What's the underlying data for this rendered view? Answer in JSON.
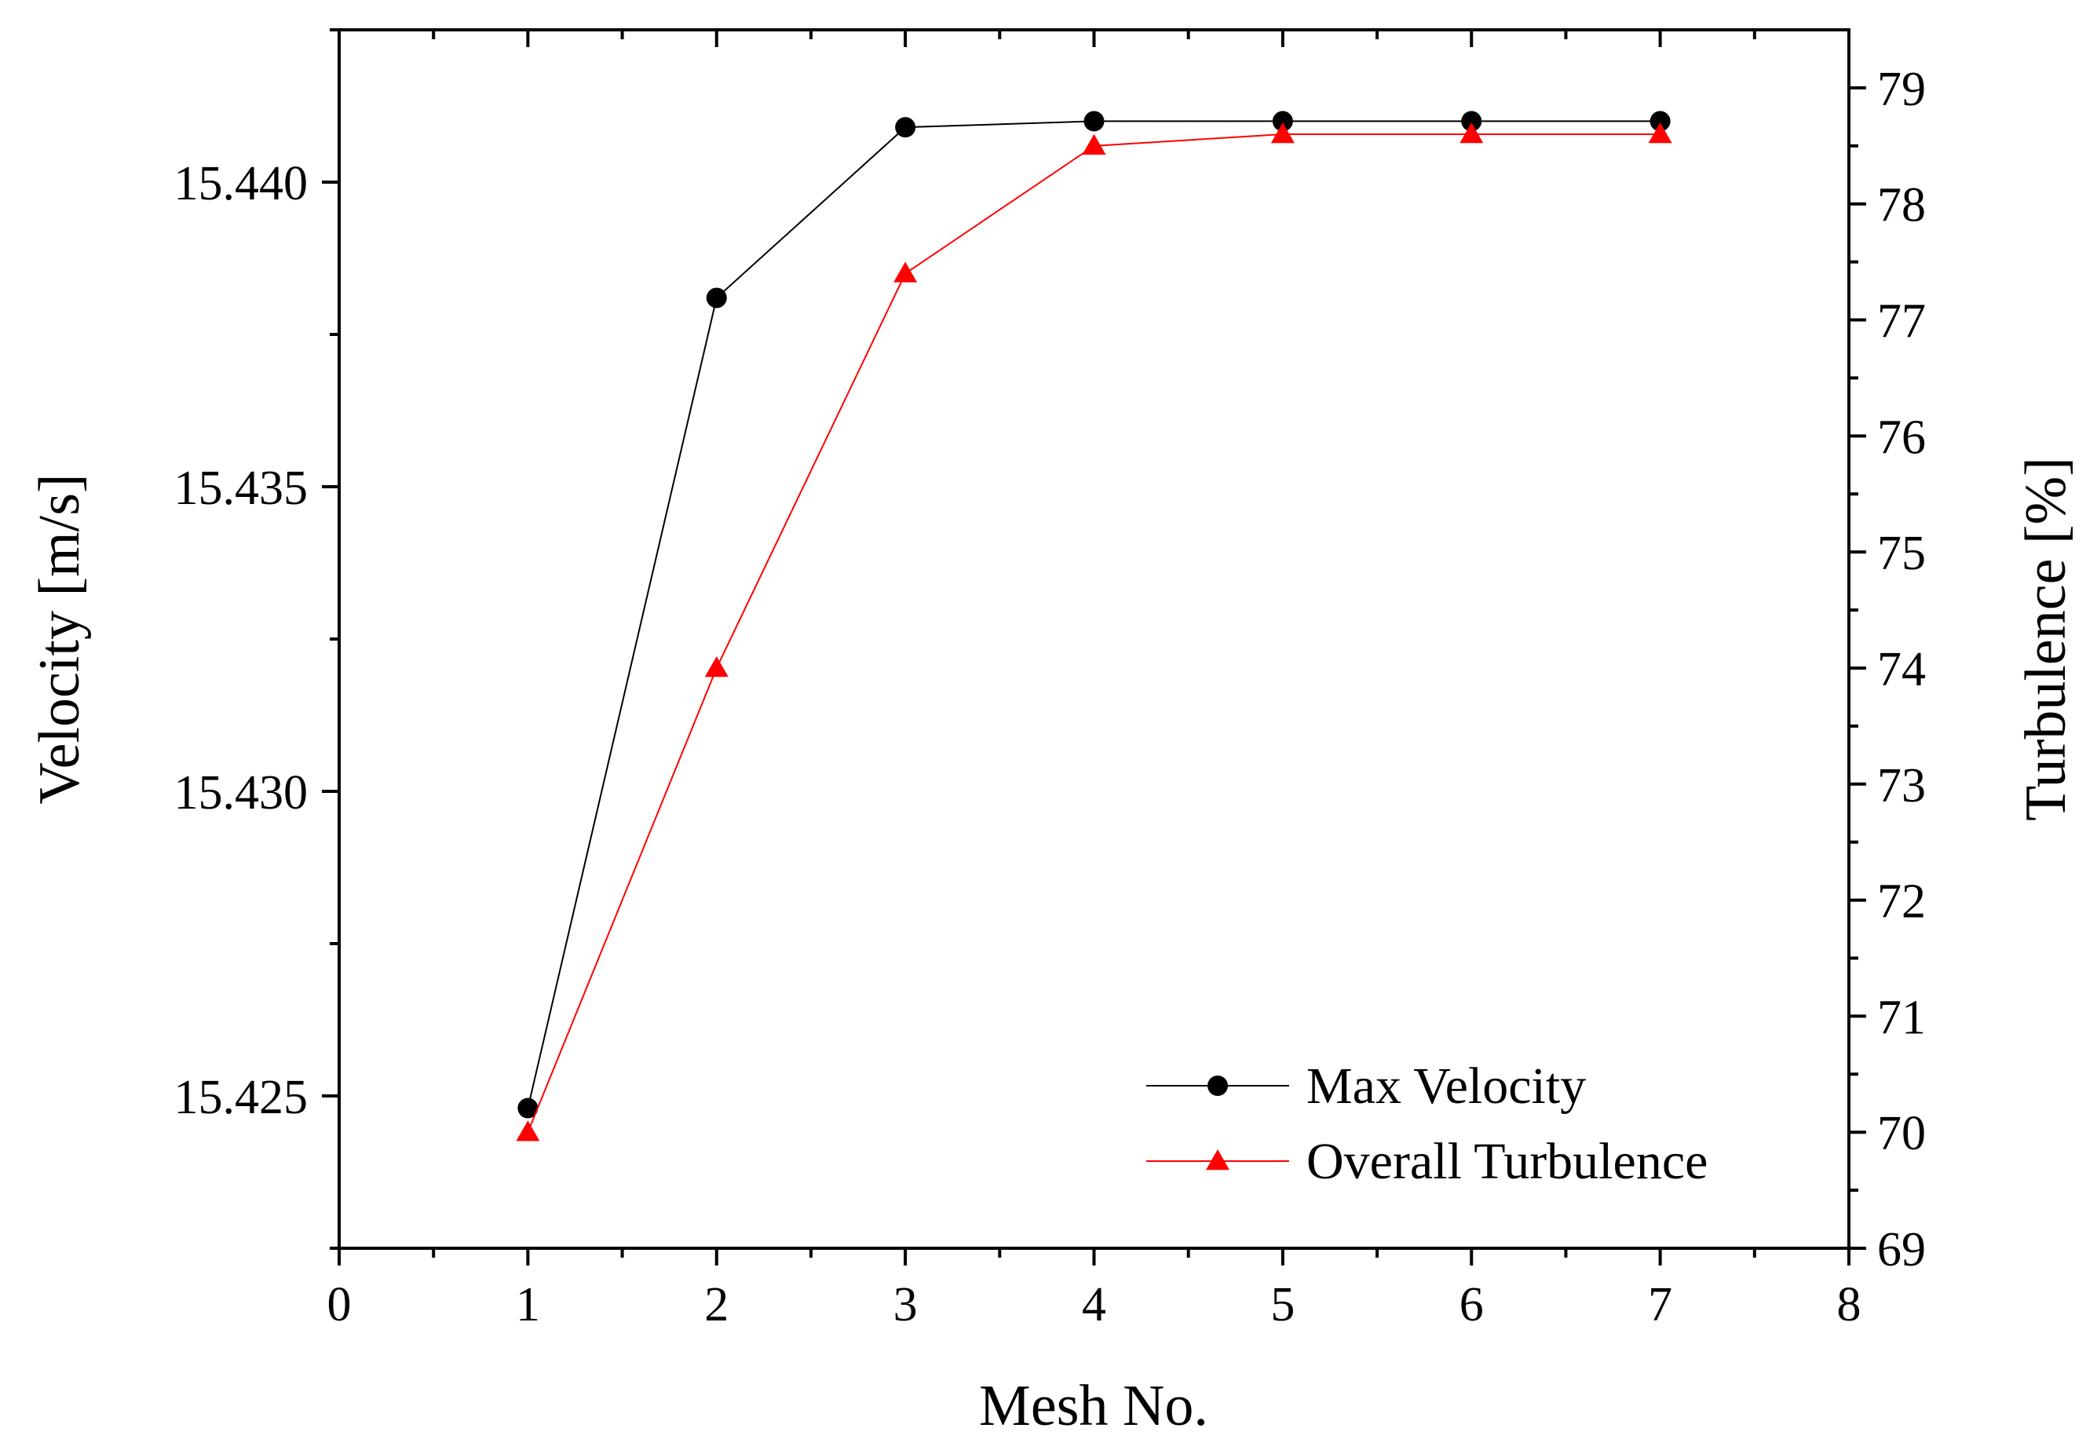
{
  "chart_data": {
    "type": "line",
    "xlabel": "Mesh No.",
    "ylabel": "Velocity [m/s]",
    "y2label": "Turbulence [%]",
    "xlim": [
      0,
      8
    ],
    "ylim": [
      15.4225,
      15.4425
    ],
    "y2lim": [
      69,
      79.5
    ],
    "xticks": [
      "0",
      "1",
      "2",
      "3",
      "4",
      "5",
      "6",
      "7",
      "8"
    ],
    "yticks": [
      "15.425",
      "15.430",
      "15.435",
      "15.440"
    ],
    "y2ticks": [
      "69",
      "70",
      "71",
      "72",
      "73",
      "74",
      "75",
      "76",
      "77",
      "78",
      "79"
    ],
    "legend_position": "bottom-right",
    "series": [
      {
        "name": "Max Velocity",
        "axis": "left",
        "marker": "circle",
        "color": "#000000",
        "x": [
          1,
          2,
          3,
          4,
          5,
          6,
          7
        ],
        "values": [
          15.4248,
          15.4381,
          15.4409,
          15.441,
          15.441,
          15.441,
          15.441
        ]
      },
      {
        "name": "Overall Turbulence",
        "axis": "right",
        "marker": "triangle",
        "color": "#ff0000",
        "x": [
          1,
          2,
          3,
          4,
          5,
          6,
          7
        ],
        "values": [
          70.0,
          74.0,
          77.4,
          78.5,
          78.6,
          78.6,
          78.6
        ]
      }
    ]
  }
}
